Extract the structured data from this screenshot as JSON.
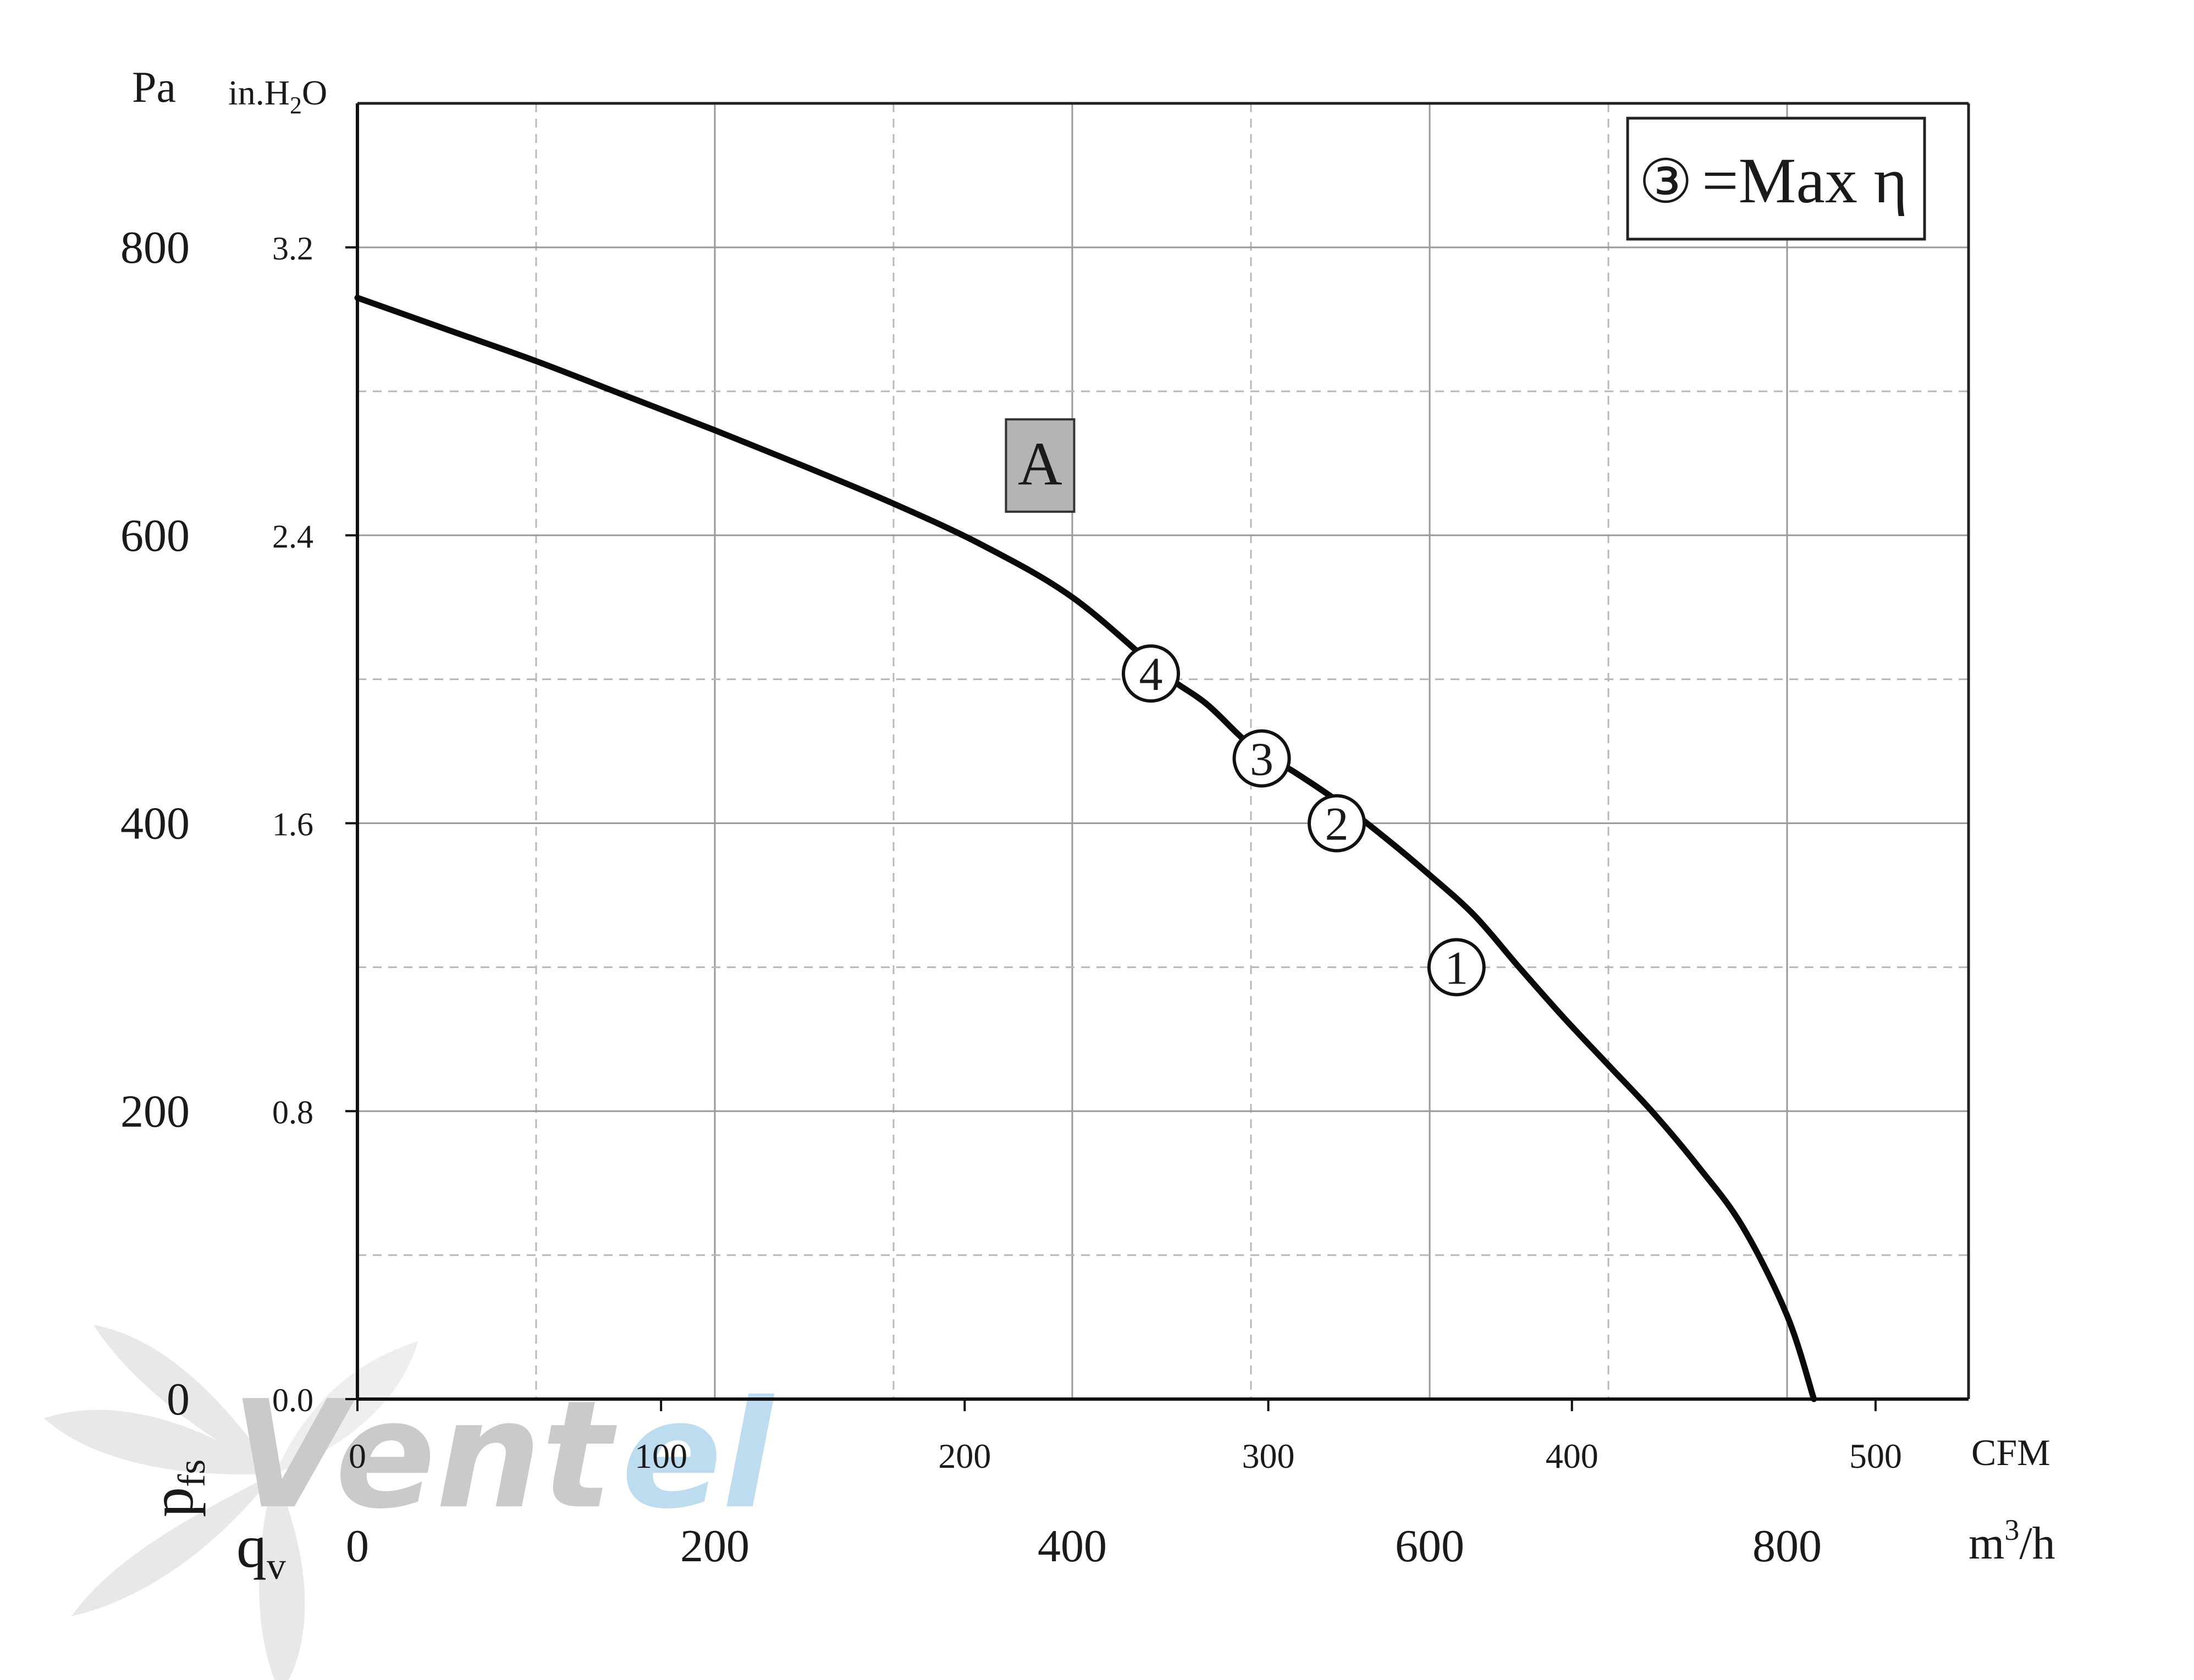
{
  "colors": {
    "curve": "#0a0a0a",
    "grid_solid": "#9a9a9a",
    "grid_dashed": "#b8b8b8",
    "label_box_fill": "#b4b4b4",
    "watermark_gray": "#c4c4c4",
    "watermark_blue": "#b6d8ee"
  },
  "chart_data": {
    "type": "line",
    "xlabel": {
      "symbol": "q",
      "sub": "v",
      "unit_primary": "m³/h",
      "unit_primary_base": "m",
      "unit_primary_sup": "3",
      "unit_primary_rest": "/h",
      "unit_secondary": "CFM"
    },
    "ylabel": {
      "symbol": "p",
      "sub": "fs",
      "unit_primary": "Pa",
      "unit_secondary": "in.H₂O",
      "unit_secondary_pre": "in.H",
      "unit_secondary_sub": "2",
      "unit_secondary_post": "O"
    },
    "xlim": [
      0,
      900
    ],
    "ylim": [
      0,
      900
    ],
    "x_ticks_m3h": [
      "0",
      "200",
      "400",
      "600",
      "800"
    ],
    "x_ticks_cfm": [
      "0",
      "100",
      "200",
      "300",
      "400",
      "500"
    ],
    "y_ticks_pa": [
      "0",
      "200",
      "400",
      "600",
      "800"
    ],
    "y_ticks_inh2o": [
      "0.0",
      "0.8",
      "1.6",
      "2.4",
      "3.2"
    ],
    "grid": true,
    "series": [
      {
        "label": "A",
        "x": [
          0,
          50,
          100,
          150,
          200,
          250,
          300,
          350,
          400,
          450,
          475,
          500,
          525,
          550,
          575,
          600,
          625,
          650,
          675,
          700,
          725,
          750,
          775,
          800,
          815
        ],
        "y": [
          765,
          743,
          721,
          697,
          673,
          648,
          622,
          593,
          557,
          505,
          483,
          454,
          435,
          414,
          390,
          364,
          336,
          300,
          265,
          232,
          199,
          162,
          120,
          58,
          0
        ]
      }
    ],
    "operating_points": [
      {
        "label": "1",
        "x": 615,
        "y": 300
      },
      {
        "label": "2",
        "x": 548,
        "y": 400
      },
      {
        "label": "3",
        "x": 506,
        "y": 445
      },
      {
        "label": "4",
        "x": 444,
        "y": 504
      }
    ],
    "legend": {
      "position": "top-right",
      "symbol": "③",
      "text": "=Max η"
    }
  },
  "watermark": {
    "part1": "Vent",
    "part2": "el"
  }
}
